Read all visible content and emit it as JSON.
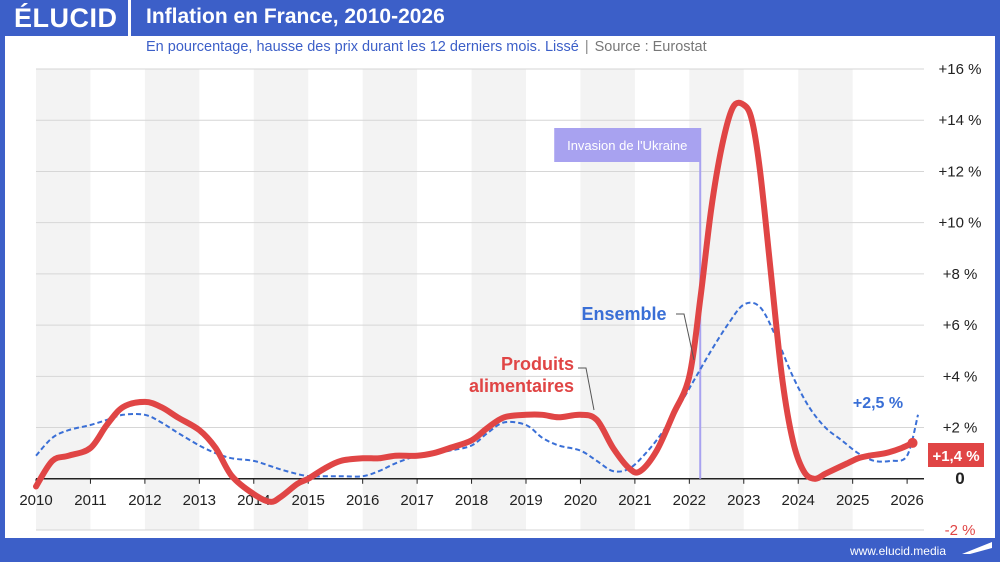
{
  "brand": {
    "logo_text": "ÉLUCID",
    "footer_url": "www.elucid.media"
  },
  "header": {
    "title": "Inflation en France, 2010-2026",
    "subtitle": "En pourcentage, hausse des prix durant les 12 derniers mois. Lissé",
    "source": "Source : Eurostat"
  },
  "colors": {
    "brand_blue": "#3c5fc8",
    "food_red": "#e04545",
    "overall_blue": "#3a6fd6",
    "annotation_purple": "#a8a2f0",
    "band_gray": "#f3f3f3"
  },
  "chart_data": {
    "type": "line",
    "title": "Inflation en France, 2010-2026",
    "x_ticks": [
      "2010",
      "2011",
      "2012",
      "2013",
      "2014",
      "2015",
      "2016",
      "2017",
      "2018",
      "2019",
      "2020",
      "2021",
      "2022",
      "2023",
      "2024",
      "2025",
      "2026"
    ],
    "y_ticks": [
      "+16 %",
      "+14 %",
      "+12 %",
      "+10 %",
      "+8 %",
      "+6 %",
      "+4 %",
      "+2 %",
      "0",
      "-2 %"
    ],
    "y_tick_values": [
      16,
      14,
      12,
      10,
      8,
      6,
      4,
      2,
      0,
      -2
    ],
    "xlim": [
      2010,
      2026.2
    ],
    "ylim": [
      -2,
      16
    ],
    "grid": true,
    "alternating_year_bands": true,
    "series": [
      {
        "name": "Produits alimentaires",
        "label_lines": [
          "Produits",
          "alimentaires"
        ],
        "style": "solid",
        "x": [
          2010.0,
          2010.3,
          2010.6,
          2011.0,
          2011.3,
          2011.6,
          2012.0,
          2012.3,
          2012.6,
          2013.0,
          2013.3,
          2013.6,
          2014.0,
          2014.3,
          2014.5,
          2014.8,
          2015.0,
          2015.3,
          2015.6,
          2016.0,
          2016.3,
          2016.6,
          2017.0,
          2017.3,
          2017.6,
          2018.0,
          2018.3,
          2018.6,
          2019.0,
          2019.3,
          2019.6,
          2020.0,
          2020.3,
          2020.6,
          2020.9,
          2021.1,
          2021.4,
          2021.7,
          2022.0,
          2022.2,
          2022.4,
          2022.6,
          2022.8,
          2023.0,
          2023.15,
          2023.3,
          2023.5,
          2023.7,
          2023.9,
          2024.1,
          2024.3,
          2024.5,
          2024.7,
          2024.9,
          2025.1,
          2025.3,
          2025.6,
          2025.9,
          2026.1
        ],
        "values": [
          -0.3,
          0.7,
          0.9,
          1.2,
          2.1,
          2.8,
          3.0,
          2.8,
          2.4,
          1.9,
          1.2,
          0.1,
          -0.6,
          -0.9,
          -0.7,
          -0.2,
          0.0,
          0.4,
          0.7,
          0.8,
          0.8,
          0.9,
          0.9,
          1.0,
          1.2,
          1.5,
          2.0,
          2.4,
          2.5,
          2.5,
          2.4,
          2.5,
          2.3,
          1.2,
          0.4,
          0.3,
          1.1,
          2.5,
          4.0,
          7.0,
          10.5,
          13.0,
          14.5,
          14.6,
          14.0,
          12.0,
          8.0,
          4.0,
          1.5,
          0.3,
          0.0,
          0.2,
          0.4,
          0.6,
          0.8,
          0.9,
          1.0,
          1.2,
          1.4
        ],
        "end_label": "+1,4 %"
      },
      {
        "name": "Ensemble",
        "label_lines": [
          "Ensemble"
        ],
        "style": "dashed",
        "x": [
          2010.0,
          2010.3,
          2010.6,
          2011.0,
          2011.3,
          2011.6,
          2012.0,
          2012.3,
          2012.6,
          2013.0,
          2013.3,
          2013.6,
          2014.0,
          2014.3,
          2014.6,
          2015.0,
          2015.3,
          2015.6,
          2016.0,
          2016.3,
          2016.6,
          2017.0,
          2017.3,
          2017.6,
          2018.0,
          2018.3,
          2018.6,
          2019.0,
          2019.3,
          2019.6,
          2020.0,
          2020.3,
          2020.6,
          2020.9,
          2021.2,
          2021.5,
          2021.8,
          2022.1,
          2022.4,
          2022.7,
          2023.0,
          2023.3,
          2023.6,
          2023.9,
          2024.2,
          2024.5,
          2024.8,
          2025.1,
          2025.4,
          2025.7,
          2026.0,
          2026.2
        ],
        "values": [
          0.9,
          1.6,
          1.9,
          2.1,
          2.3,
          2.5,
          2.5,
          2.2,
          1.8,
          1.3,
          1.0,
          0.8,
          0.7,
          0.5,
          0.3,
          0.1,
          0.1,
          0.1,
          0.1,
          0.3,
          0.6,
          0.9,
          1.0,
          1.1,
          1.3,
          1.8,
          2.2,
          2.1,
          1.6,
          1.3,
          1.1,
          0.7,
          0.3,
          0.4,
          1.0,
          1.8,
          2.8,
          3.9,
          5.0,
          6.0,
          6.8,
          6.7,
          5.5,
          4.0,
          2.8,
          2.0,
          1.5,
          1.0,
          0.7,
          0.7,
          0.9,
          2.5
        ],
        "end_label": "+2,5 %"
      }
    ],
    "annotations": [
      {
        "text": "Invasion de l'Ukraine",
        "x": 2022.2
      }
    ]
  }
}
